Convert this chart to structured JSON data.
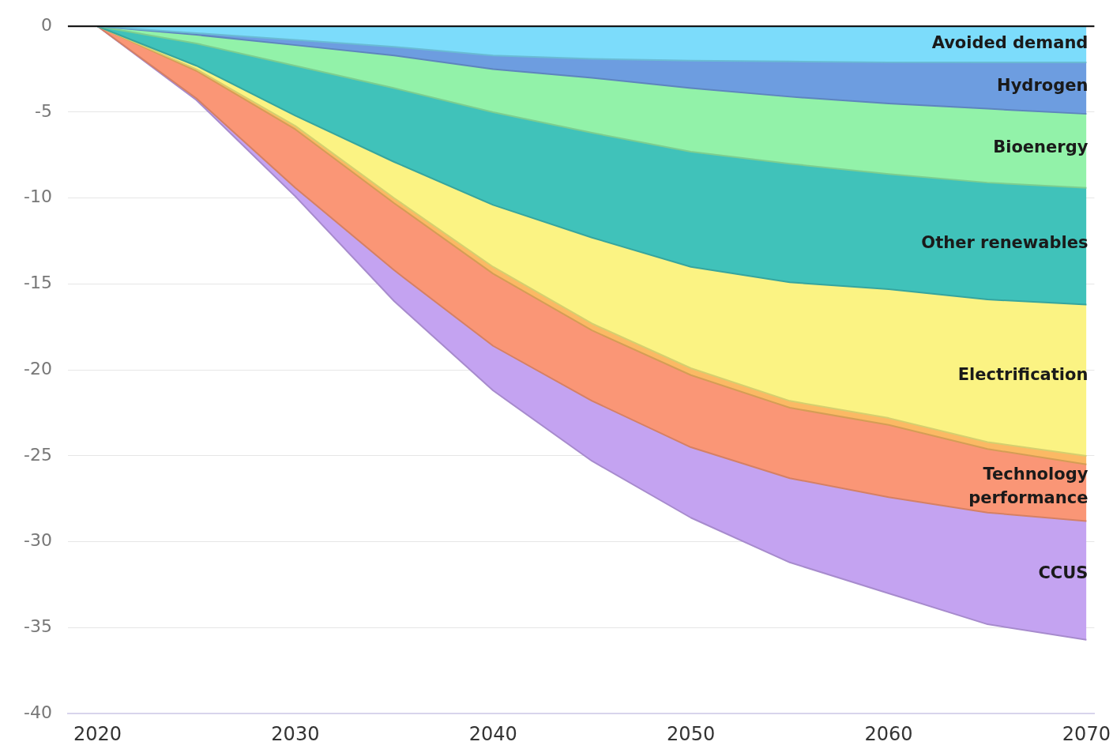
{
  "chart_data": {
    "type": "area",
    "stacked": true,
    "x": [
      2020,
      2025,
      2030,
      2035,
      2040,
      2045,
      2050,
      2055,
      2060,
      2065,
      2070
    ],
    "series": [
      {
        "name": "Avoided demand",
        "color": "#7cdcfb",
        "values": [
          0,
          -0.4,
          -0.8,
          -1.2,
          -1.7,
          -1.9,
          -2.0,
          -2.05,
          -2.1,
          -2.1,
          -2.1
        ]
      },
      {
        "name": "Hydrogen",
        "color": "#6d9de0",
        "values": [
          0,
          -0.1,
          -0.3,
          -0.5,
          -0.8,
          -1.1,
          -1.6,
          -2.05,
          -2.4,
          -2.7,
          -3.0
        ]
      },
      {
        "name": "Bioenergy",
        "color": "#92f2a9",
        "values": [
          0,
          -0.5,
          -1.2,
          -1.9,
          -2.5,
          -3.2,
          -3.7,
          -3.9,
          -4.1,
          -4.3,
          -4.3
        ]
      },
      {
        "name": "Other renewables",
        "color": "#40c2ba",
        "values": [
          0,
          -1.3,
          -2.9,
          -4.3,
          -5.4,
          -6.1,
          -6.7,
          -6.9,
          -6.7,
          -6.8,
          -6.8
        ]
      },
      {
        "name": "Electrification",
        "color": "#fbf383",
        "values": [
          0,
          -0.2,
          -0.6,
          -2.1,
          -3.6,
          -5.0,
          -5.9,
          -6.9,
          -7.5,
          -8.3,
          -8.8
        ]
      },
      {
        "color": "#fbb964",
        "values": [
          0,
          -0.1,
          -0.2,
          -0.3,
          -0.4,
          -0.4,
          -0.4,
          -0.4,
          -0.4,
          -0.4,
          -0.5
        ]
      },
      {
        "name": "Technology performance",
        "color": "#fa9676",
        "values": [
          0,
          -1.6,
          -3.4,
          -3.9,
          -4.2,
          -4.1,
          -4.2,
          -4.1,
          -4.2,
          -3.7,
          -3.3
        ]
      },
      {
        "name": "CCUS",
        "color": "#c4a3f1",
        "values": [
          0,
          -0.1,
          -0.5,
          -1.8,
          -2.6,
          -3.5,
          -4.1,
          -4.9,
          -5.6,
          -6.5,
          -6.9
        ]
      }
    ],
    "xlim": [
      2018.5,
      2070.4
    ],
    "xticks": [
      2020,
      2030,
      2040,
      2050,
      2060,
      2070
    ],
    "ylim": [
      -40,
      0
    ],
    "yticks": [
      -40,
      -35,
      -30,
      -25,
      -20,
      -15,
      -10,
      -5,
      0
    ],
    "grid": "y",
    "legend": false,
    "ref_lines": [
      {
        "axis": "y",
        "value": 0,
        "color": "#000000"
      }
    ]
  }
}
